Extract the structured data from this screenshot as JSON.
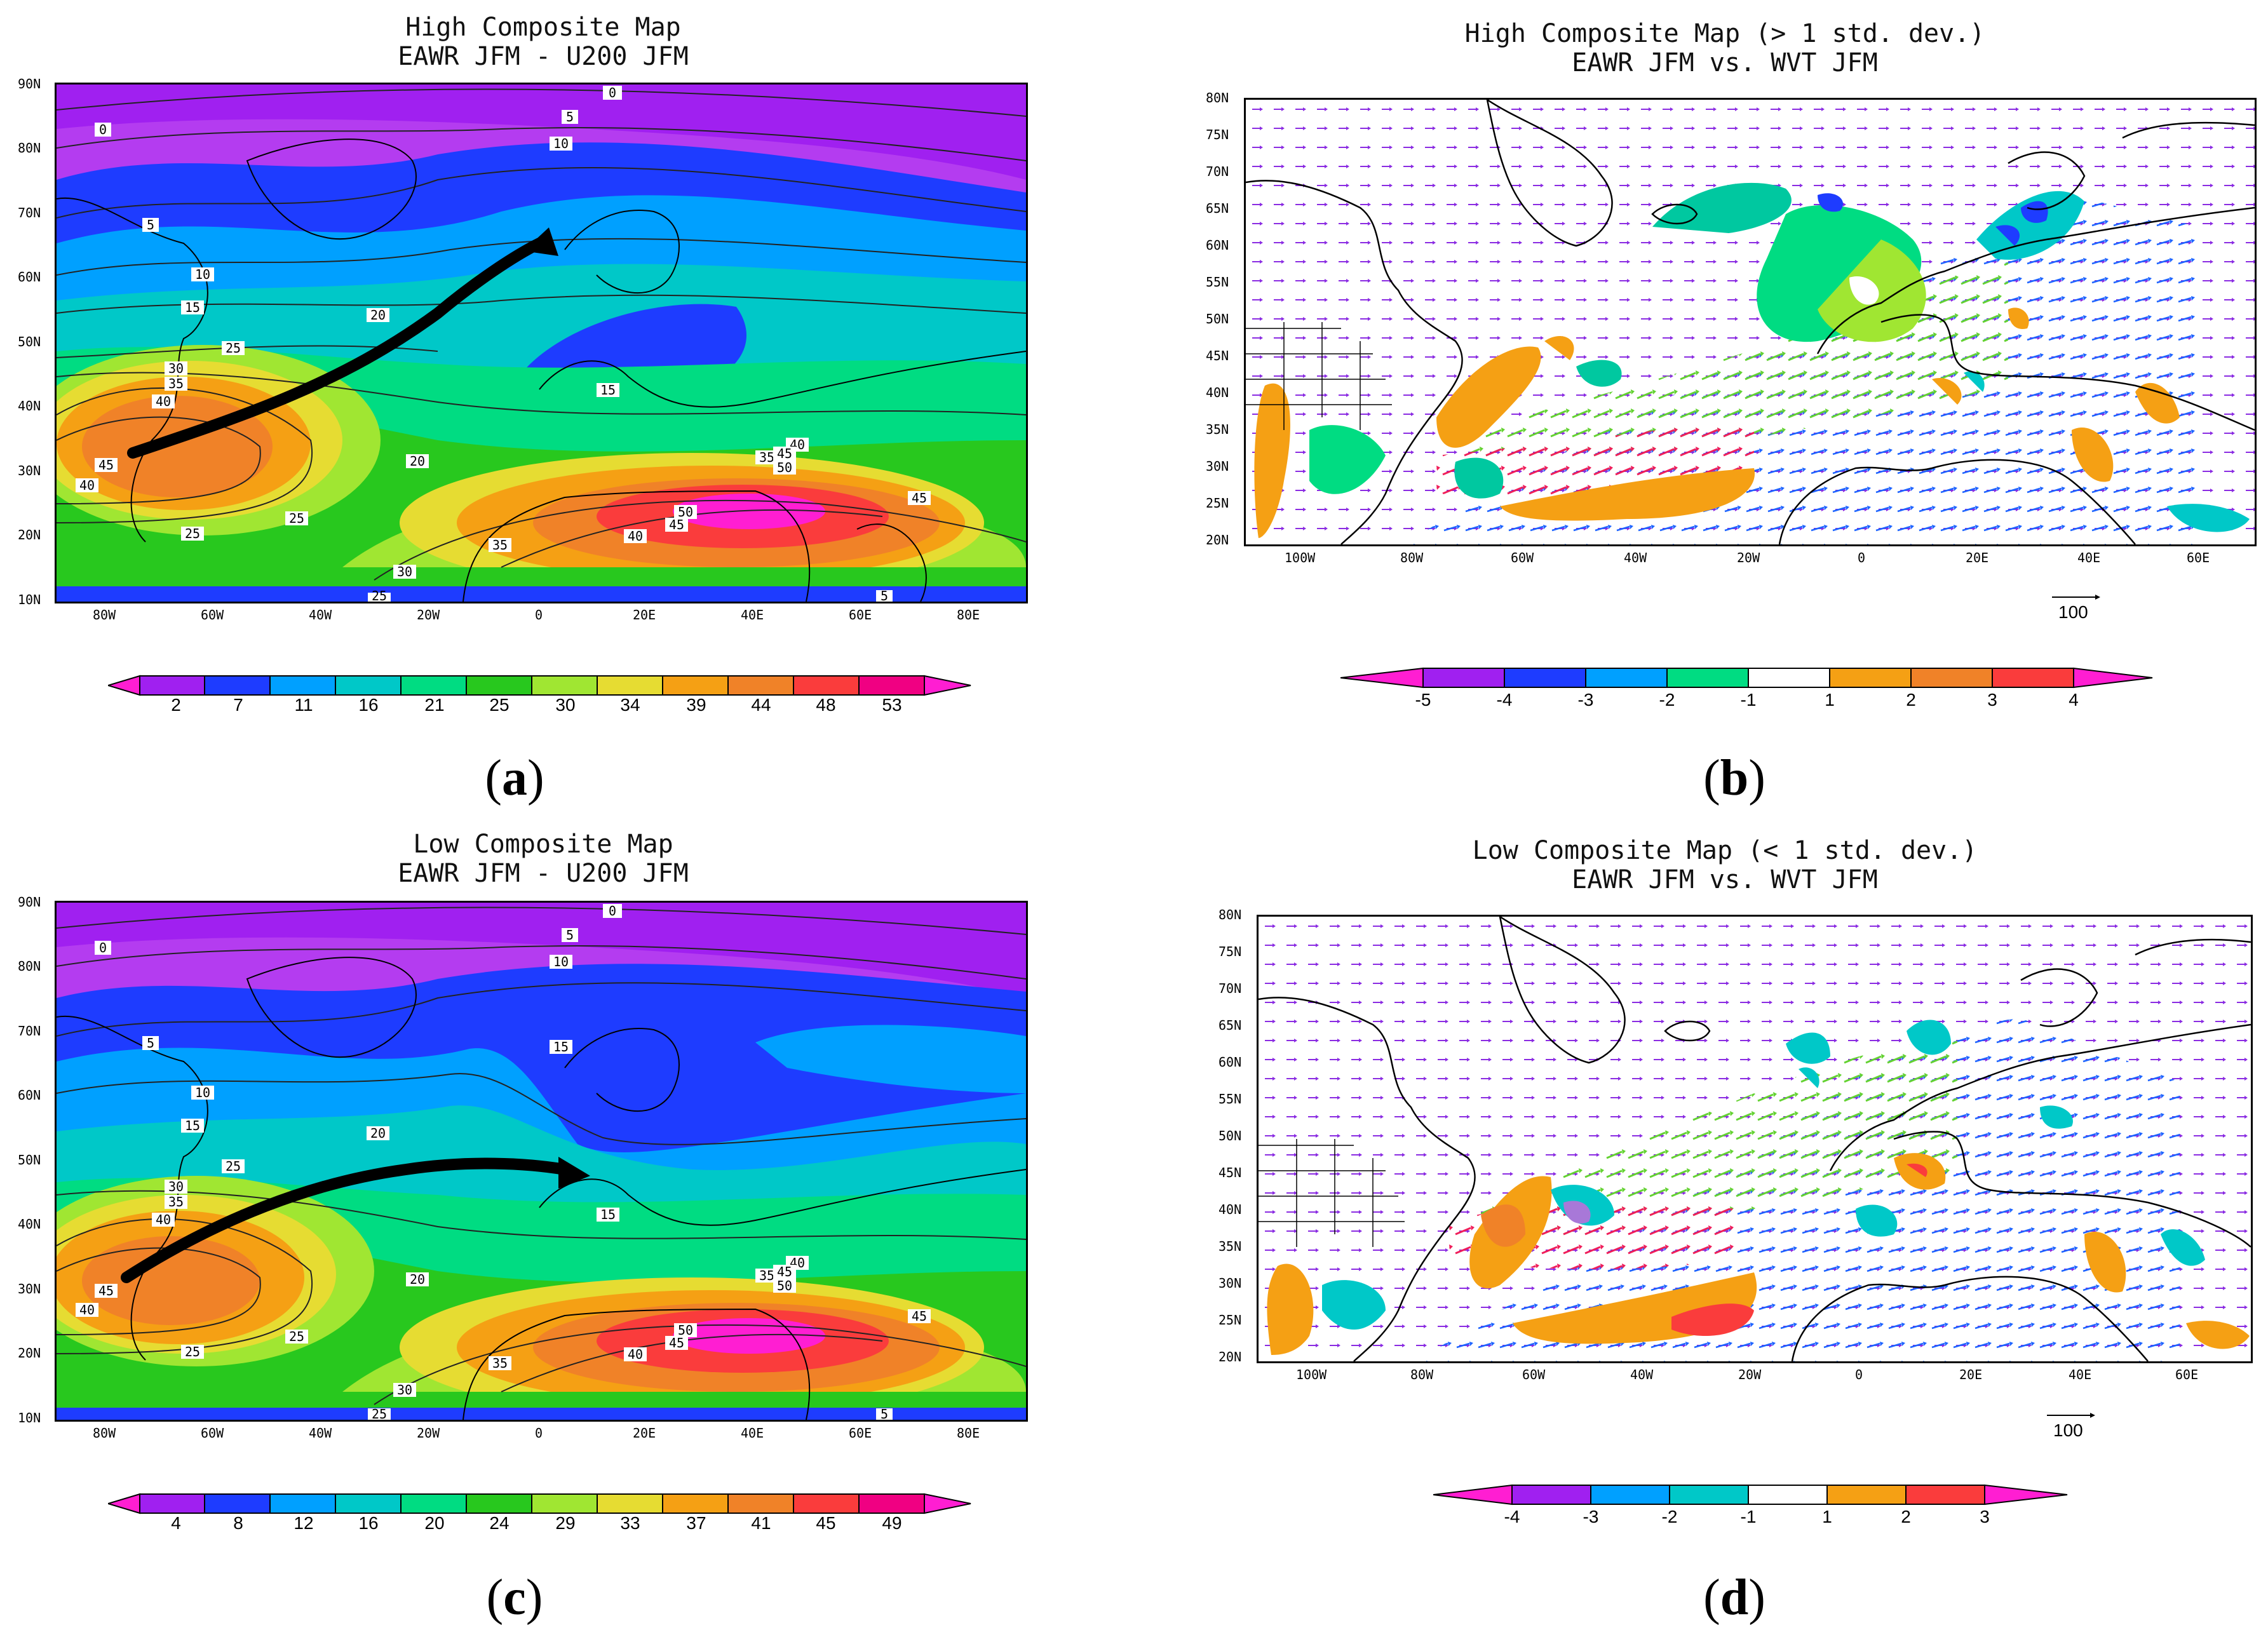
{
  "figure": {
    "panels": [
      {
        "id": "a",
        "panel_label_parts": [
          "(",
          "a",
          ")"
        ],
        "title_line1": "High Composite Map",
        "title_line2": "EAWR JFM - U200 JFM",
        "lat_labels": [
          "90N",
          "80N",
          "70N",
          "60N",
          "50N",
          "40N",
          "30N",
          "20N",
          "10N"
        ],
        "lon_labels": [
          "80W",
          "60W",
          "40W",
          "20W",
          "0",
          "20E",
          "40E",
          "60E",
          "80E"
        ],
        "colorbar_labels": [
          "2",
          "7",
          "11",
          "16",
          "21",
          "25",
          "30",
          "34",
          "39",
          "44",
          "48",
          "53"
        ],
        "contour_labels": [
          "0",
          "5",
          "10",
          "15",
          "20",
          "25",
          "30",
          "35",
          "40",
          "45",
          "50"
        ]
      },
      {
        "id": "b",
        "panel_label_parts": [
          "(",
          "b",
          ")"
        ],
        "title_line1": "High Composite Map (> 1 std. dev.)",
        "title_line2": "EAWR JFM vs. WVT JFM",
        "lat_labels": [
          "80N",
          "75N",
          "70N",
          "65N",
          "60N",
          "55N",
          "50N",
          "45N",
          "40N",
          "35N",
          "30N",
          "25N",
          "20N"
        ],
        "lon_labels": [
          "100W",
          "80W",
          "60W",
          "40W",
          "20W",
          "0",
          "20E",
          "40E",
          "60E"
        ],
        "colorbar_labels": [
          "-5",
          "-4",
          "-3",
          "-2",
          "-1",
          "1",
          "2",
          "3",
          "4"
        ],
        "reference_vector": "100"
      },
      {
        "id": "c",
        "panel_label_parts": [
          "(",
          "c",
          ")"
        ],
        "title_line1": "Low Composite Map",
        "title_line2": "EAWR JFM - U200 JFM",
        "lat_labels": [
          "90N",
          "80N",
          "70N",
          "60N",
          "50N",
          "40N",
          "30N",
          "20N",
          "10N"
        ],
        "lon_labels": [
          "80W",
          "60W",
          "40W",
          "20W",
          "0",
          "20E",
          "40E",
          "60E",
          "80E"
        ],
        "colorbar_labels": [
          "4",
          "8",
          "12",
          "16",
          "20",
          "24",
          "29",
          "33",
          "37",
          "41",
          "45",
          "49"
        ],
        "contour_labels": [
          "0",
          "5",
          "10",
          "15",
          "20",
          "25",
          "30",
          "35",
          "40",
          "45",
          "50"
        ]
      },
      {
        "id": "d",
        "panel_label_parts": [
          "(",
          "d",
          ")"
        ],
        "title_line1": "Low Composite Map (< 1 std. dev.)",
        "title_line2": "EAWR JFM vs. WVT JFM",
        "lat_labels": [
          "80N",
          "75N",
          "70N",
          "65N",
          "60N",
          "55N",
          "50N",
          "45N",
          "40N",
          "35N",
          "30N",
          "25N",
          "20N"
        ],
        "lon_labels": [
          "100W",
          "80W",
          "60W",
          "40W",
          "20W",
          "0",
          "20E",
          "40E",
          "60E"
        ],
        "colorbar_labels": [
          "-4",
          "-3",
          "-2",
          "-1",
          "1",
          "2",
          "3"
        ],
        "reference_vector": "100"
      }
    ],
    "colors": {
      "magenta": "#ff1ed2",
      "purple": "#a020f0",
      "blue": "#1e3cff",
      "sky": "#00a0ff",
      "cyan": "#00c8c8",
      "teal_green": "#00dc82",
      "green": "#28c81e",
      "lime": "#a0e632",
      "yellow": "#e6dc32",
      "orange": "#f5a014",
      "dark_orange": "#f08228",
      "red": "#fa3c3c",
      "pink": "#f00082",
      "white": "#ffffff"
    }
  }
}
